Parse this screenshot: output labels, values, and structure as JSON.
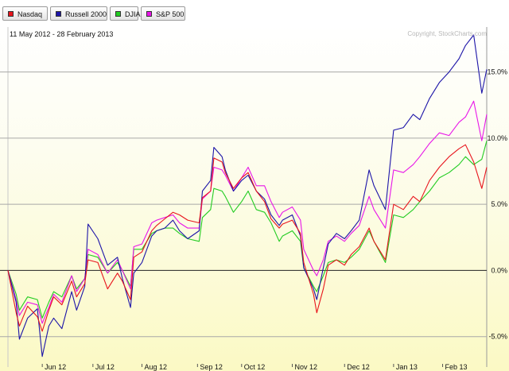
{
  "legend": [
    {
      "label": "Nasdaq",
      "color": "#e8141c"
    },
    {
      "label": "Russell 2000",
      "color": "#1c14a8"
    },
    {
      "label": "DJIA",
      "color": "#22cc22"
    },
    {
      "label": "S&P 500",
      "color": "#e814e8"
    }
  ],
  "header": {
    "date_range": "11 May 2012 - 28 February 2013",
    "copyright": "Copyright, StockCharts.com"
  },
  "chart_data": {
    "type": "line",
    "title": "",
    "xlabel": "",
    "ylabel": "",
    "x_start": "2012-05-11",
    "x_end": "2013-02-28",
    "x_ticks": [
      {
        "label": "Jun 12",
        "date": "2012-06-01"
      },
      {
        "label": "Jul 12",
        "date": "2012-07-02"
      },
      {
        "label": "Aug 12",
        "date": "2012-08-01"
      },
      {
        "label": "Sep 12",
        "date": "2012-09-04"
      },
      {
        "label": "Oct 12",
        "date": "2012-10-01"
      },
      {
        "label": "Nov 12",
        "date": "2012-11-01"
      },
      {
        "label": "Dec 12",
        "date": "2012-12-03"
      },
      {
        "label": "Jan 13",
        "date": "2013-01-02"
      },
      {
        "label": "Feb 13",
        "date": "2013-02-01"
      }
    ],
    "y_ticks": [
      {
        "label": "15.0%",
        "value": 15
      },
      {
        "label": "10.0%",
        "value": 10
      },
      {
        "label": "5.0%",
        "value": 5
      },
      {
        "label": "0.0%",
        "value": 0
      },
      {
        "label": "-5.0%",
        "value": -5
      }
    ],
    "ylim": [
      -7.3,
      18.4
    ],
    "grid": true,
    "legend_position": "top",
    "y_axis_side": "right",
    "series": [
      {
        "name": "Nasdaq",
        "color": "#e8141c",
        "points": [
          [
            "2012-05-11",
            0.0
          ],
          [
            "2012-05-16",
            -3.2
          ],
          [
            "2012-05-18",
            -4.2
          ],
          [
            "2012-05-23",
            -2.7
          ],
          [
            "2012-05-29",
            -3.5
          ],
          [
            "2012-06-01",
            -4.6
          ],
          [
            "2012-06-05",
            -3.0
          ],
          [
            "2012-06-08",
            -2.0
          ],
          [
            "2012-06-13",
            -2.6
          ],
          [
            "2012-06-19",
            -0.8
          ],
          [
            "2012-06-22",
            -2.0
          ],
          [
            "2012-06-27",
            -1.0
          ],
          [
            "2012-06-29",
            0.8
          ],
          [
            "2012-07-05",
            0.6
          ],
          [
            "2012-07-11",
            -1.4
          ],
          [
            "2012-07-17",
            -0.2
          ],
          [
            "2012-07-20",
            -0.8
          ],
          [
            "2012-07-25",
            -2.2
          ],
          [
            "2012-07-27",
            1.0
          ],
          [
            "2012-08-01",
            1.4
          ],
          [
            "2012-08-07",
            3.0
          ],
          [
            "2012-08-10",
            3.4
          ],
          [
            "2012-08-15",
            3.9
          ],
          [
            "2012-08-20",
            4.4
          ],
          [
            "2012-08-24",
            4.2
          ],
          [
            "2012-08-29",
            3.8
          ],
          [
            "2012-09-05",
            3.6
          ],
          [
            "2012-09-07",
            5.5
          ],
          [
            "2012-09-12",
            6.0
          ],
          [
            "2012-09-14",
            8.5
          ],
          [
            "2012-09-19",
            8.2
          ],
          [
            "2012-09-21",
            7.4
          ],
          [
            "2012-09-26",
            6.2
          ],
          [
            "2012-10-01",
            7.0
          ],
          [
            "2012-10-05",
            7.4
          ],
          [
            "2012-10-10",
            6.0
          ],
          [
            "2012-10-15",
            5.2
          ],
          [
            "2012-10-19",
            3.9
          ],
          [
            "2012-10-24",
            3.2
          ],
          [
            "2012-10-26",
            3.5
          ],
          [
            "2012-11-01",
            3.8
          ],
          [
            "2012-11-06",
            2.8
          ],
          [
            "2012-11-08",
            0.6
          ],
          [
            "2012-11-14",
            -1.8
          ],
          [
            "2012-11-16",
            -3.2
          ],
          [
            "2012-11-20",
            -1.4
          ],
          [
            "2012-11-23",
            0.4
          ],
          [
            "2012-11-28",
            0.8
          ],
          [
            "2012-12-03",
            0.4
          ],
          [
            "2012-12-07",
            1.2
          ],
          [
            "2012-12-12",
            1.8
          ],
          [
            "2012-12-18",
            3.2
          ],
          [
            "2012-12-21",
            2.2
          ],
          [
            "2012-12-28",
            0.8
          ],
          [
            "2013-01-02",
            5.0
          ],
          [
            "2013-01-08",
            4.6
          ],
          [
            "2013-01-14",
            5.6
          ],
          [
            "2013-01-18",
            5.2
          ],
          [
            "2013-01-24",
            6.8
          ],
          [
            "2013-01-30",
            7.8
          ],
          [
            "2013-02-05",
            8.6
          ],
          [
            "2013-02-11",
            9.2
          ],
          [
            "2013-02-15",
            9.5
          ],
          [
            "2013-02-20",
            8.2
          ],
          [
            "2013-02-25",
            6.2
          ],
          [
            "2013-02-28",
            7.8
          ]
        ]
      },
      {
        "name": "Russell 2000",
        "color": "#1c14a8",
        "points": [
          [
            "2012-05-11",
            0.0
          ],
          [
            "2012-05-16",
            -2.4
          ],
          [
            "2012-05-18",
            -5.2
          ],
          [
            "2012-05-23",
            -3.6
          ],
          [
            "2012-05-29",
            -2.9
          ],
          [
            "2012-06-01",
            -6.5
          ],
          [
            "2012-06-05",
            -4.2
          ],
          [
            "2012-06-08",
            -3.6
          ],
          [
            "2012-06-13",
            -4.4
          ],
          [
            "2012-06-19",
            -1.6
          ],
          [
            "2012-06-22",
            -3.0
          ],
          [
            "2012-06-27",
            -1.2
          ],
          [
            "2012-06-29",
            3.5
          ],
          [
            "2012-07-05",
            2.4
          ],
          [
            "2012-07-11",
            0.4
          ],
          [
            "2012-07-17",
            1.0
          ],
          [
            "2012-07-20",
            -0.6
          ],
          [
            "2012-07-25",
            -2.8
          ],
          [
            "2012-07-27",
            -0.2
          ],
          [
            "2012-08-01",
            0.6
          ],
          [
            "2012-08-07",
            2.6
          ],
          [
            "2012-08-10",
            3.0
          ],
          [
            "2012-08-15",
            3.2
          ],
          [
            "2012-08-20",
            3.8
          ],
          [
            "2012-08-24",
            3.0
          ],
          [
            "2012-08-29",
            2.4
          ],
          [
            "2012-09-05",
            3.0
          ],
          [
            "2012-09-07",
            6.0
          ],
          [
            "2012-09-12",
            6.8
          ],
          [
            "2012-09-14",
            9.3
          ],
          [
            "2012-09-19",
            8.6
          ],
          [
            "2012-09-21",
            7.6
          ],
          [
            "2012-09-26",
            6.0
          ],
          [
            "2012-10-01",
            6.8
          ],
          [
            "2012-10-05",
            7.2
          ],
          [
            "2012-10-10",
            6.0
          ],
          [
            "2012-10-15",
            5.4
          ],
          [
            "2012-10-19",
            4.2
          ],
          [
            "2012-10-24",
            3.4
          ],
          [
            "2012-10-26",
            3.8
          ],
          [
            "2012-11-01",
            4.2
          ],
          [
            "2012-11-06",
            2.6
          ],
          [
            "2012-11-08",
            0.2
          ],
          [
            "2012-11-14",
            -1.4
          ],
          [
            "2012-11-16",
            -2.2
          ],
          [
            "2012-11-20",
            0.2
          ],
          [
            "2012-11-23",
            2.0
          ],
          [
            "2012-11-28",
            2.8
          ],
          [
            "2012-12-03",
            2.4
          ],
          [
            "2012-12-07",
            3.0
          ],
          [
            "2012-12-12",
            3.8
          ],
          [
            "2012-12-18",
            7.6
          ],
          [
            "2012-12-21",
            6.4
          ],
          [
            "2012-12-28",
            4.6
          ],
          [
            "2013-01-02",
            10.6
          ],
          [
            "2013-01-08",
            10.8
          ],
          [
            "2013-01-14",
            11.8
          ],
          [
            "2013-01-18",
            11.4
          ],
          [
            "2013-01-24",
            13.0
          ],
          [
            "2013-01-30",
            14.2
          ],
          [
            "2013-02-05",
            15.0
          ],
          [
            "2013-02-11",
            16.0
          ],
          [
            "2013-02-15",
            17.0
          ],
          [
            "2013-02-20",
            17.8
          ],
          [
            "2013-02-25",
            13.4
          ],
          [
            "2013-02-28",
            15.2
          ]
        ]
      },
      {
        "name": "DJIA",
        "color": "#22cc22",
        "points": [
          [
            "2012-05-11",
            0.0
          ],
          [
            "2012-05-16",
            -1.8
          ],
          [
            "2012-05-18",
            -3.0
          ],
          [
            "2012-05-23",
            -2.0
          ],
          [
            "2012-05-29",
            -2.2
          ],
          [
            "2012-06-01",
            -3.6
          ],
          [
            "2012-06-05",
            -2.4
          ],
          [
            "2012-06-08",
            -1.6
          ],
          [
            "2012-06-13",
            -2.0
          ],
          [
            "2012-06-19",
            -0.4
          ],
          [
            "2012-06-22",
            -1.4
          ],
          [
            "2012-06-27",
            -0.6
          ],
          [
            "2012-06-29",
            1.2
          ],
          [
            "2012-07-05",
            1.0
          ],
          [
            "2012-07-11",
            -0.2
          ],
          [
            "2012-07-17",
            0.6
          ],
          [
            "2012-07-20",
            0.0
          ],
          [
            "2012-07-25",
            -1.2
          ],
          [
            "2012-07-27",
            1.6
          ],
          [
            "2012-08-01",
            1.6
          ],
          [
            "2012-08-07",
            2.8
          ],
          [
            "2012-08-10",
            3.0
          ],
          [
            "2012-08-15",
            3.2
          ],
          [
            "2012-08-20",
            3.2
          ],
          [
            "2012-08-24",
            2.8
          ],
          [
            "2012-08-29",
            2.4
          ],
          [
            "2012-09-05",
            2.2
          ],
          [
            "2012-09-07",
            4.0
          ],
          [
            "2012-09-12",
            4.6
          ],
          [
            "2012-09-14",
            6.2
          ],
          [
            "2012-09-19",
            6.0
          ],
          [
            "2012-09-21",
            5.6
          ],
          [
            "2012-09-26",
            4.4
          ],
          [
            "2012-10-01",
            5.2
          ],
          [
            "2012-10-05",
            6.0
          ],
          [
            "2012-10-10",
            4.6
          ],
          [
            "2012-10-15",
            4.4
          ],
          [
            "2012-10-19",
            3.6
          ],
          [
            "2012-10-24",
            2.2
          ],
          [
            "2012-10-26",
            2.6
          ],
          [
            "2012-11-01",
            3.0
          ],
          [
            "2012-11-06",
            2.2
          ],
          [
            "2012-11-08",
            0.2
          ],
          [
            "2012-11-14",
            -1.2
          ],
          [
            "2012-11-16",
            -1.6
          ],
          [
            "2012-11-20",
            -0.4
          ],
          [
            "2012-11-23",
            0.6
          ],
          [
            "2012-11-28",
            0.8
          ],
          [
            "2012-12-03",
            0.6
          ],
          [
            "2012-12-07",
            1.0
          ],
          [
            "2012-12-12",
            1.6
          ],
          [
            "2012-12-18",
            3.0
          ],
          [
            "2012-12-21",
            2.2
          ],
          [
            "2012-12-28",
            0.6
          ],
          [
            "2013-01-02",
            4.2
          ],
          [
            "2013-01-08",
            4.0
          ],
          [
            "2013-01-14",
            4.6
          ],
          [
            "2013-01-18",
            5.2
          ],
          [
            "2013-01-24",
            6.0
          ],
          [
            "2013-01-30",
            7.0
          ],
          [
            "2013-02-05",
            7.4
          ],
          [
            "2013-02-11",
            8.0
          ],
          [
            "2013-02-15",
            8.6
          ],
          [
            "2013-02-20",
            8.0
          ],
          [
            "2013-02-25",
            8.4
          ],
          [
            "2013-02-28",
            9.8
          ]
        ]
      },
      {
        "name": "S&P 500",
        "color": "#e814e8",
        "points": [
          [
            "2012-05-11",
            0.0
          ],
          [
            "2012-05-16",
            -2.2
          ],
          [
            "2012-05-18",
            -3.4
          ],
          [
            "2012-05-23",
            -2.4
          ],
          [
            "2012-05-29",
            -2.6
          ],
          [
            "2012-06-01",
            -4.0
          ],
          [
            "2012-06-05",
            -2.8
          ],
          [
            "2012-06-08",
            -1.8
          ],
          [
            "2012-06-13",
            -2.4
          ],
          [
            "2012-06-19",
            -0.4
          ],
          [
            "2012-06-22",
            -1.6
          ],
          [
            "2012-06-27",
            -0.6
          ],
          [
            "2012-06-29",
            1.6
          ],
          [
            "2012-07-05",
            1.2
          ],
          [
            "2012-07-11",
            -0.2
          ],
          [
            "2012-07-17",
            0.8
          ],
          [
            "2012-07-20",
            0.0
          ],
          [
            "2012-07-25",
            -1.4
          ],
          [
            "2012-07-27",
            1.8
          ],
          [
            "2012-08-01",
            2.0
          ],
          [
            "2012-08-07",
            3.6
          ],
          [
            "2012-08-10",
            3.8
          ],
          [
            "2012-08-15",
            4.0
          ],
          [
            "2012-08-20",
            4.2
          ],
          [
            "2012-08-24",
            3.6
          ],
          [
            "2012-08-29",
            3.2
          ],
          [
            "2012-09-05",
            3.2
          ],
          [
            "2012-09-07",
            5.4
          ],
          [
            "2012-09-12",
            6.0
          ],
          [
            "2012-09-14",
            7.8
          ],
          [
            "2012-09-19",
            7.6
          ],
          [
            "2012-09-21",
            7.2
          ],
          [
            "2012-09-26",
            6.0
          ],
          [
            "2012-10-01",
            7.0
          ],
          [
            "2012-10-05",
            7.8
          ],
          [
            "2012-10-10",
            6.4
          ],
          [
            "2012-10-15",
            6.4
          ],
          [
            "2012-10-19",
            5.2
          ],
          [
            "2012-10-24",
            4.0
          ],
          [
            "2012-10-26",
            4.4
          ],
          [
            "2012-11-01",
            4.8
          ],
          [
            "2012-11-06",
            3.8
          ],
          [
            "2012-11-08",
            1.6
          ],
          [
            "2012-11-14",
            0.0
          ],
          [
            "2012-11-16",
            -0.4
          ],
          [
            "2012-11-20",
            0.8
          ],
          [
            "2012-11-23",
            2.2
          ],
          [
            "2012-11-28",
            2.6
          ],
          [
            "2012-12-03",
            2.2
          ],
          [
            "2012-12-07",
            2.8
          ],
          [
            "2012-12-12",
            3.4
          ],
          [
            "2012-12-18",
            5.6
          ],
          [
            "2012-12-21",
            4.6
          ],
          [
            "2012-12-28",
            3.2
          ],
          [
            "2013-01-02",
            7.6
          ],
          [
            "2013-01-08",
            7.4
          ],
          [
            "2013-01-14",
            8.0
          ],
          [
            "2013-01-18",
            8.6
          ],
          [
            "2013-01-24",
            9.6
          ],
          [
            "2013-01-30",
            10.4
          ],
          [
            "2013-02-05",
            10.2
          ],
          [
            "2013-02-11",
            11.2
          ],
          [
            "2013-02-15",
            11.6
          ],
          [
            "2013-02-20",
            12.8
          ],
          [
            "2013-02-25",
            9.8
          ],
          [
            "2013-02-28",
            11.8
          ]
        ]
      }
    ]
  }
}
